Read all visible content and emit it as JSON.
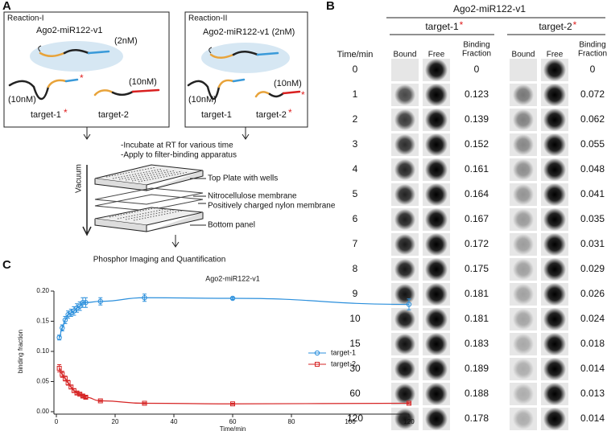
{
  "panel_a": {
    "label": "A",
    "reaction_1": {
      "title": "Reaction-I",
      "complex": "Ago2-miR122-v1",
      "complex_conc": "(2nM)",
      "target_1_conc": "(10nM)",
      "target_2_conc": "(10nM)",
      "target_1": "target-1",
      "target_1_mark": "*",
      "target_2": "target-2"
    },
    "reaction_2": {
      "title": "Reaction-II",
      "complex": "Ago2-miR122-v1 (2nM)",
      "target_1_conc": "(10nM)",
      "target_2_conc": "(10nM)",
      "target_1": "target-1",
      "target_2": "target-2",
      "target_2_mark": "*"
    },
    "steps": [
      "-Incubate at RT for various time",
      "-Apply to filter-binding apparatus"
    ],
    "vacuum": "Vacuum",
    "layers": [
      "Top Plate with wells",
      "Nitrocellulose membrane",
      "Positively charged nylon membrane",
      "Bottom panel"
    ],
    "readout": "Phosphor Imaging and Quantification"
  },
  "panel_b": {
    "label": "B",
    "complex": "Ago2-miR122-v1",
    "time_header": "Time/min",
    "columns": [
      "Bound",
      "Free"
    ],
    "fraction_header": [
      "Binding",
      "Fraction"
    ],
    "times": [
      0,
      1,
      2,
      3,
      4,
      5,
      6,
      7,
      8,
      9,
      10,
      15,
      30,
      60,
      120
    ],
    "targets": [
      {
        "name": "target-1",
        "mark": "*",
        "fractions": [
          0,
          0.123,
          0.139,
          0.152,
          0.161,
          0.164,
          0.167,
          0.172,
          0.175,
          0.181,
          0.181,
          0.183,
          0.189,
          0.188,
          0.178
        ]
      },
      {
        "name": "target-2",
        "mark": "*",
        "fractions": [
          0,
          0.072,
          0.062,
          0.055,
          0.048,
          0.041,
          0.035,
          0.031,
          0.029,
          0.026,
          0.024,
          0.018,
          0.014,
          0.013,
          0.014
        ]
      }
    ]
  },
  "chart_data": {
    "type": "line",
    "panel_label": "C",
    "title": "Ago2-miR122-v1",
    "x_label": "Time/min",
    "y_label": "binding fraction",
    "x": [
      1,
      2,
      3,
      4,
      5,
      6,
      7,
      8,
      9,
      10,
      15,
      30,
      60,
      120
    ],
    "series": [
      {
        "name": "target-1",
        "color": "#2b8fdc",
        "marker": "circle",
        "values": [
          0.123,
          0.139,
          0.152,
          0.161,
          0.164,
          0.167,
          0.172,
          0.175,
          0.181,
          0.181,
          0.183,
          0.189,
          0.188,
          0.178
        ],
        "errors": [
          0.004,
          0.005,
          0.006,
          0.006,
          0.006,
          0.007,
          0.007,
          0.007,
          0.008,
          0.008,
          0.006,
          0.006,
          0.002,
          0.009
        ]
      },
      {
        "name": "target-2",
        "color": "#d62424",
        "marker": "square",
        "values": [
          0.072,
          0.062,
          0.055,
          0.048,
          0.041,
          0.035,
          0.031,
          0.029,
          0.026,
          0.024,
          0.018,
          0.014,
          0.013,
          0.014
        ],
        "errors": [
          0.006,
          0.005,
          0.004,
          0.004,
          0.003,
          0.003,
          0.002,
          0.002,
          0.002,
          0.002,
          0.001,
          0.001,
          0.001,
          0.001
        ]
      }
    ],
    "xlim": [
      0,
      120
    ],
    "xticks": [
      0,
      20,
      40,
      60,
      80,
      100,
      120
    ],
    "ylim": [
      0,
      0.2
    ],
    "yticks": [
      {
        "value": 0,
        "label": "0.00"
      },
      {
        "value": 0.05,
        "label": "0.05"
      },
      {
        "value": 0.1,
        "label": "0.10"
      },
      {
        "value": 0.15,
        "label": "0.15"
      },
      {
        "value": 0.2,
        "label": "0.20"
      }
    ],
    "legend": "center-right"
  }
}
